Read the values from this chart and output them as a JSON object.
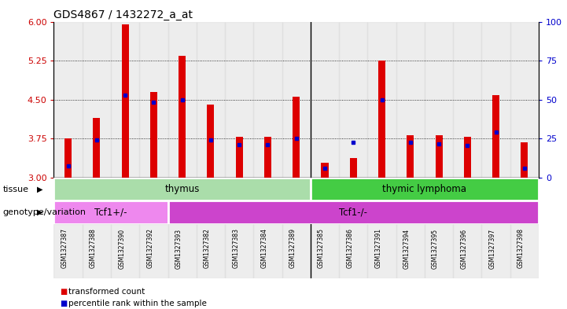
{
  "title": "GDS4867 / 1432272_a_at",
  "samples": [
    "GSM1327387",
    "GSM1327388",
    "GSM1327390",
    "GSM1327392",
    "GSM1327393",
    "GSM1327382",
    "GSM1327383",
    "GSM1327384",
    "GSM1327389",
    "GSM1327385",
    "GSM1327386",
    "GSM1327391",
    "GSM1327394",
    "GSM1327395",
    "GSM1327396",
    "GSM1327397",
    "GSM1327398"
  ],
  "transformed_count": [
    3.75,
    4.15,
    5.95,
    4.65,
    5.35,
    4.4,
    3.78,
    3.78,
    4.55,
    3.28,
    3.38,
    5.25,
    3.82,
    3.82,
    3.78,
    4.58,
    3.68
  ],
  "percentile_rank": [
    3.22,
    3.72,
    4.58,
    4.45,
    4.5,
    3.72,
    3.63,
    3.63,
    3.75,
    3.18,
    3.68,
    4.5,
    3.68,
    3.65,
    3.62,
    3.88,
    3.18
  ],
  "ylim": [
    3.0,
    6.0
  ],
  "yticks_left": [
    3,
    3.75,
    4.5,
    5.25,
    6
  ],
  "yticks_right": [
    0,
    25,
    50,
    75,
    100
  ],
  "yticks_right_pos": [
    3.0,
    3.75,
    4.5,
    5.25,
    6.0
  ],
  "grid_lines": [
    3.75,
    4.5,
    5.25
  ],
  "bar_color": "#dd0000",
  "percentile_color": "#0000cc",
  "bar_width": 0.25,
  "tissue_thymus_color": "#aaddaa",
  "tissue_lymphoma_color": "#44cc44",
  "genotype_tcf1plus_color": "#ee88ee",
  "genotype_tcf1minus_color": "#cc44cc",
  "tissue_groups": [
    {
      "label": "thymus",
      "start": 0,
      "end": 9
    },
    {
      "label": "thymic lymphoma",
      "start": 9,
      "end": 17
    }
  ],
  "genotype_groups": [
    {
      "label": "Tcf1+/-",
      "start": 0,
      "end": 4
    },
    {
      "label": "Tcf1-/-",
      "start": 4,
      "end": 17
    }
  ],
  "tissue_label": "tissue",
  "genotype_label": "genotype/variation",
  "legend_items": [
    {
      "label": "transformed count",
      "color": "#dd0000"
    },
    {
      "label": "percentile rank within the sample",
      "color": "#0000cc"
    }
  ],
  "left_axis_color": "#cc0000",
  "right_axis_color": "#0000cc",
  "col_bg_color": "#dddddd",
  "separator_col": 9
}
